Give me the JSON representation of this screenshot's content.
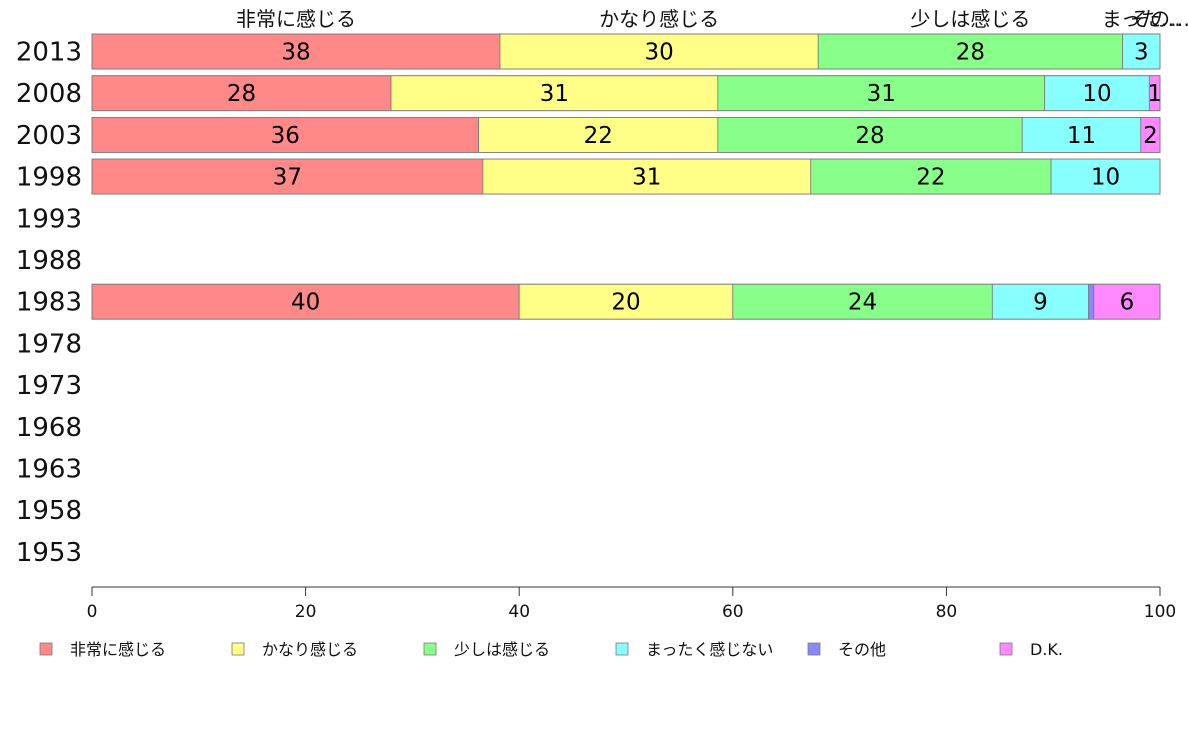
{
  "chart_data": {
    "type": "bar",
    "orientation": "horizontal",
    "stacked": true,
    "categories": [
      "2013",
      "2008",
      "2003",
      "1998",
      "1993",
      "1988",
      "1983",
      "1978",
      "1973",
      "1968",
      "1963",
      "1958",
      "1953"
    ],
    "xlim": [
      0,
      100
    ],
    "xticks": [
      "0",
      "20",
      "40",
      "60",
      "80",
      "100"
    ],
    "grid": false,
    "legend_position": "bottom",
    "top_labels": [
      "非常に感じる",
      "かなり感じる",
      "少しは感じる",
      "まった…",
      "その…"
    ],
    "series": [
      {
        "name": "非常に感じる",
        "color": "#ff8888",
        "values": [
          38.2,
          28,
          36.2,
          36.6,
          null,
          null,
          40,
          null,
          null,
          null,
          null,
          null,
          null
        ],
        "labels": [
          "38",
          "28",
          "36",
          "37",
          "",
          "",
          "40",
          "",
          "",
          "",
          "",
          "",
          ""
        ]
      },
      {
        "name": "かなり感じる",
        "color": "#ffff88",
        "values": [
          29.8,
          30.6,
          22.4,
          30.7,
          null,
          null,
          20,
          null,
          null,
          null,
          null,
          null,
          null
        ],
        "labels": [
          "30",
          "31",
          "22",
          "31",
          "",
          "",
          "20",
          "",
          "",
          "",
          "",
          "",
          ""
        ]
      },
      {
        "name": "少しは感じる",
        "color": "#88ff88",
        "values": [
          28.5,
          30.6,
          28.5,
          22.5,
          null,
          null,
          24.3,
          null,
          null,
          null,
          null,
          null,
          null
        ],
        "labels": [
          "28",
          "31",
          "28",
          "22",
          "",
          "",
          "24",
          "",
          "",
          "",
          "",
          "",
          ""
        ]
      },
      {
        "name": "まったく感じない",
        "color": "#88ffff",
        "values": [
          3.5,
          9.8,
          11.1,
          10.2,
          null,
          null,
          9,
          null,
          null,
          null,
          null,
          null,
          null
        ],
        "labels": [
          "3",
          "10",
          "11",
          "10",
          "",
          "",
          "9",
          "",
          "",
          "",
          "",
          "",
          ""
        ]
      },
      {
        "name": "その他",
        "color": "#8888ff",
        "values": [
          0,
          0,
          0,
          0,
          null,
          null,
          0.5,
          null,
          null,
          null,
          null,
          null,
          null
        ],
        "labels": [
          "",
          "",
          "",
          "",
          "",
          "",
          "",
          "",
          "",
          "",
          "",
          "",
          ""
        ]
      },
      {
        "name": "D.K.",
        "color": "#ff88ff",
        "values": [
          0,
          1,
          1.8,
          0,
          null,
          null,
          6.2,
          null,
          null,
          null,
          null,
          null,
          null
        ],
        "labels": [
          "",
          "1",
          "2",
          "",
          "",
          "",
          "6",
          "",
          "",
          "",
          "",
          "",
          ""
        ]
      }
    ]
  }
}
